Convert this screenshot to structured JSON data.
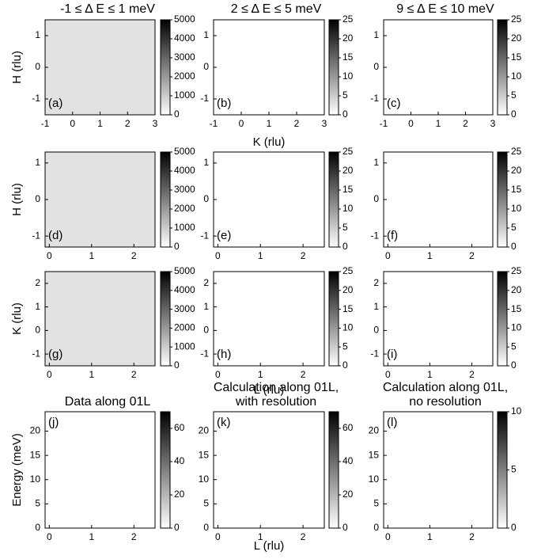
{
  "chart_data": [
    {
      "type": "heatmap",
      "title": [
        "-1 ≤ Δ E ≤ 1 meV"
      ],
      "panel_label": "(a)",
      "ylabel": "H (rlu)",
      "xlim": [
        -1,
        3
      ],
      "xticks": [
        -1,
        0,
        1,
        2,
        3
      ],
      "ylim": [
        -1.5,
        1.5
      ],
      "yticks": [
        -1,
        0,
        1
      ],
      "clim": [
        0,
        5000
      ],
      "cticks": [
        0,
        1000,
        2000,
        3000,
        4000,
        5000
      ]
    },
    {
      "type": "heatmap",
      "title": [
        "2 ≤ Δ E ≤ 5 meV"
      ],
      "panel_label": "(b)",
      "xlabel": "K (rlu)",
      "xlim": [
        -1,
        3
      ],
      "xticks": [
        -1,
        0,
        1,
        2,
        3
      ],
      "ylim": [
        -1.5,
        1.5
      ],
      "yticks": [
        -1,
        0,
        1
      ],
      "clim": [
        0,
        25
      ],
      "cticks": [
        0,
        5,
        10,
        15,
        20,
        25
      ]
    },
    {
      "type": "heatmap",
      "title": [
        "9 ≤ Δ E ≤ 10 meV"
      ],
      "panel_label": "(c)",
      "xlim": [
        -1,
        3
      ],
      "xticks": [
        -1,
        0,
        1,
        2,
        3
      ],
      "ylim": [
        -1.5,
        1.5
      ],
      "yticks": [
        -1,
        0,
        1
      ],
      "clim": [
        0,
        25
      ],
      "cticks": [
        0,
        5,
        10,
        15,
        20,
        25
      ]
    },
    {
      "type": "heatmap",
      "panel_label": "(d)",
      "ylabel": "H (rlu)",
      "xlim": [
        -0.1,
        2.5
      ],
      "xticks": [
        0,
        1,
        2
      ],
      "ylim": [
        -1.3,
        1.3
      ],
      "yticks": [
        -1,
        0,
        1
      ],
      "clim": [
        0,
        5000
      ],
      "cticks": [
        0,
        1000,
        2000,
        3000,
        4000,
        5000
      ]
    },
    {
      "type": "heatmap",
      "panel_label": "(e)",
      "xlim": [
        -0.1,
        2.5
      ],
      "xticks": [
        0,
        1,
        2
      ],
      "ylim": [
        -1.3,
        1.3
      ],
      "yticks": [
        -1,
        0,
        1
      ],
      "clim": [
        0,
        25
      ],
      "cticks": [
        0,
        5,
        10,
        15,
        20,
        25
      ]
    },
    {
      "type": "heatmap",
      "panel_label": "(f)",
      "xlim": [
        -0.1,
        2.5
      ],
      "xticks": [
        0,
        1,
        2
      ],
      "ylim": [
        -1.3,
        1.3
      ],
      "yticks": [
        -1,
        0,
        1
      ],
      "clim": [
        0,
        25
      ],
      "cticks": [
        0,
        5,
        10,
        15,
        20,
        25
      ]
    },
    {
      "type": "heatmap",
      "panel_label": "(g)",
      "ylabel": "K (rlu)",
      "xlim": [
        -0.1,
        2.5
      ],
      "xticks": [
        0,
        1,
        2
      ],
      "ylim": [
        -1.5,
        2.5
      ],
      "yticks": [
        -1,
        0,
        1,
        2
      ],
      "clim": [
        0,
        5000
      ],
      "cticks": [
        0,
        1000,
        2000,
        3000,
        4000,
        5000
      ]
    },
    {
      "type": "heatmap",
      "panel_label": "(h)",
      "xlabel": "L (rlu)",
      "xlim": [
        -0.1,
        2.5
      ],
      "xticks": [
        0,
        1,
        2
      ],
      "ylim": [
        -1.5,
        2.5
      ],
      "yticks": [
        -1,
        0,
        1,
        2
      ],
      "clim": [
        0,
        25
      ],
      "cticks": [
        0,
        5,
        10,
        15,
        20,
        25
      ]
    },
    {
      "type": "heatmap",
      "panel_label": "(i)",
      "xlim": [
        -0.1,
        2.5
      ],
      "xticks": [
        0,
        1,
        2
      ],
      "ylim": [
        -1.5,
        2.5
      ],
      "yticks": [
        -1,
        0,
        1,
        2
      ],
      "clim": [
        0,
        25
      ],
      "cticks": [
        0,
        5,
        10,
        15,
        20,
        25
      ]
    },
    {
      "type": "heatmap",
      "title": [
        "Data along 01L"
      ],
      "panel_label": "(j)",
      "ylabel": "Energy (meV)",
      "xlim": [
        -0.1,
        2.5
      ],
      "xticks": [
        0,
        1,
        2
      ],
      "ylim": [
        0,
        24
      ],
      "yticks": [
        0,
        5,
        10,
        15,
        20
      ],
      "clim": [
        0,
        70
      ],
      "cticks": [
        0,
        20,
        40,
        60
      ]
    },
    {
      "type": "heatmap",
      "title": [
        "Calculation along 01L,",
        "with resolution"
      ],
      "panel_label": "(k)",
      "xlabel": "L (rlu)",
      "xlim": [
        -0.1,
        2.5
      ],
      "xticks": [
        0,
        1,
        2
      ],
      "ylim": [
        0,
        24
      ],
      "yticks": [
        0,
        5,
        10,
        15,
        20
      ],
      "clim": [
        0,
        70
      ],
      "cticks": [
        0,
        20,
        40,
        60
      ]
    },
    {
      "type": "heatmap",
      "title": [
        "Calculation along 01L,",
        "no resolution"
      ],
      "panel_label": "(l)",
      "xlim": [
        -0.1,
        2.5
      ],
      "xticks": [
        0,
        1,
        2
      ],
      "ylim": [
        0,
        24
      ],
      "yticks": [
        0,
        5,
        10,
        15,
        20
      ],
      "clim": [
        0,
        10
      ],
      "cticks": [
        0,
        5,
        10
      ]
    }
  ]
}
